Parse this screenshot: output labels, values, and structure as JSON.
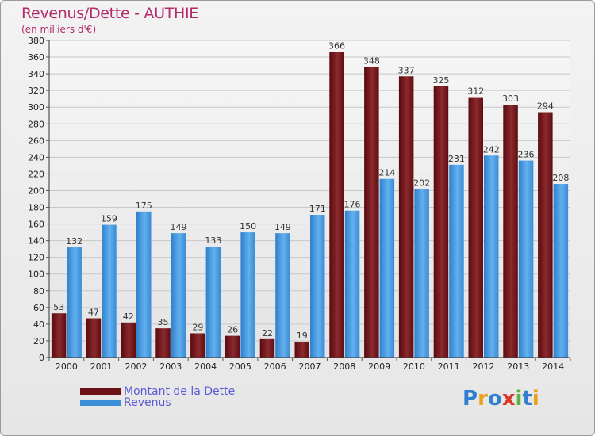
{
  "header": {
    "title": "Revenus/Dette - AUTHIE",
    "subtitle": "(en milliers d'€)"
  },
  "legend": {
    "debt_label": "Montant de la Dette",
    "revenue_label": "Revenus"
  },
  "logo": {
    "text": "Proxiti"
  },
  "colors": {
    "debt": "#7a1a1e",
    "revenue": "#3b8ed8",
    "title": "#b22a6a",
    "legend_text": "#5b5bd6"
  },
  "chart_data": {
    "type": "bar",
    "title": "Revenus/Dette - AUTHIE",
    "subtitle": "(en milliers d'€)",
    "categories": [
      "2000",
      "2001",
      "2002",
      "2003",
      "2004",
      "2005",
      "2006",
      "2007",
      "2008",
      "2009",
      "2010",
      "2011",
      "2012",
      "2013",
      "2014"
    ],
    "series": [
      {
        "name": "Montant de la Dette",
        "values": [
          53,
          47,
          42,
          35,
          29,
          26,
          22,
          19,
          366,
          348,
          337,
          325,
          312,
          303,
          294
        ]
      },
      {
        "name": "Revenus",
        "values": [
          132,
          159,
          175,
          149,
          133,
          150,
          149,
          171,
          176,
          214,
          202,
          231,
          242,
          236,
          208
        ]
      }
    ],
    "ylim": [
      0,
      380
    ],
    "ytick_step": 20,
    "grid": true,
    "legend_position": "bottom-left"
  }
}
